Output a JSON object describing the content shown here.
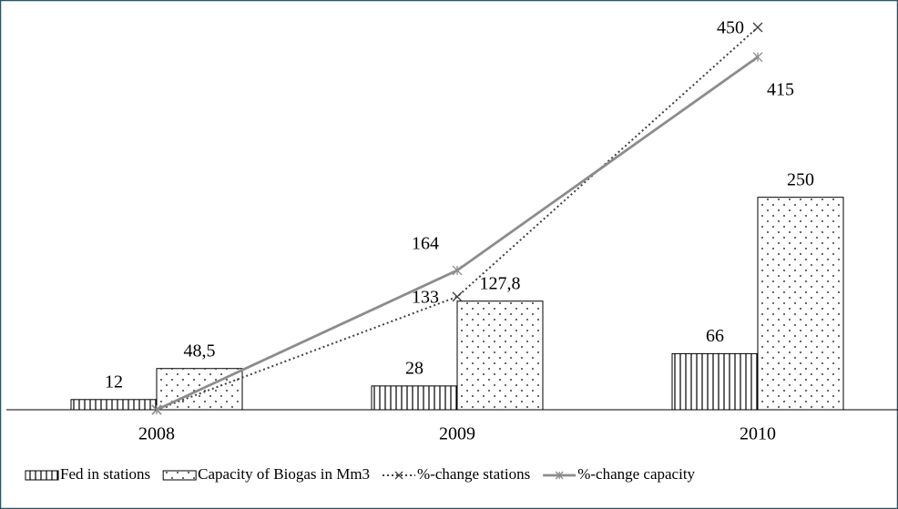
{
  "chart_data": {
    "type": "bar-line",
    "categories": [
      "2008",
      "2009",
      "2010"
    ],
    "series": [
      {
        "name": "Fed in stations",
        "type": "bar",
        "color": "#000000",
        "pattern": "vertical-stripes",
        "values": [
          12,
          28,
          66
        ]
      },
      {
        "name": "Capacity of Biogas in Mm3",
        "type": "bar",
        "color": "#000000",
        "pattern": "dots",
        "values": [
          48.5,
          127.8,
          250
        ],
        "value_labels": [
          "48,5",
          "127,8",
          "250"
        ]
      },
      {
        "name": "%-change stations",
        "type": "line",
        "color": "#404040",
        "dash": "dotted",
        "marker": "x",
        "values": [
          0,
          133,
          450
        ]
      },
      {
        "name": "%-change capacity",
        "type": "line",
        "color": "#8c8c8c",
        "marker": "asterisk",
        "values": [
          0,
          164,
          415
        ]
      }
    ],
    "ylim": [
      0,
      450
    ]
  }
}
